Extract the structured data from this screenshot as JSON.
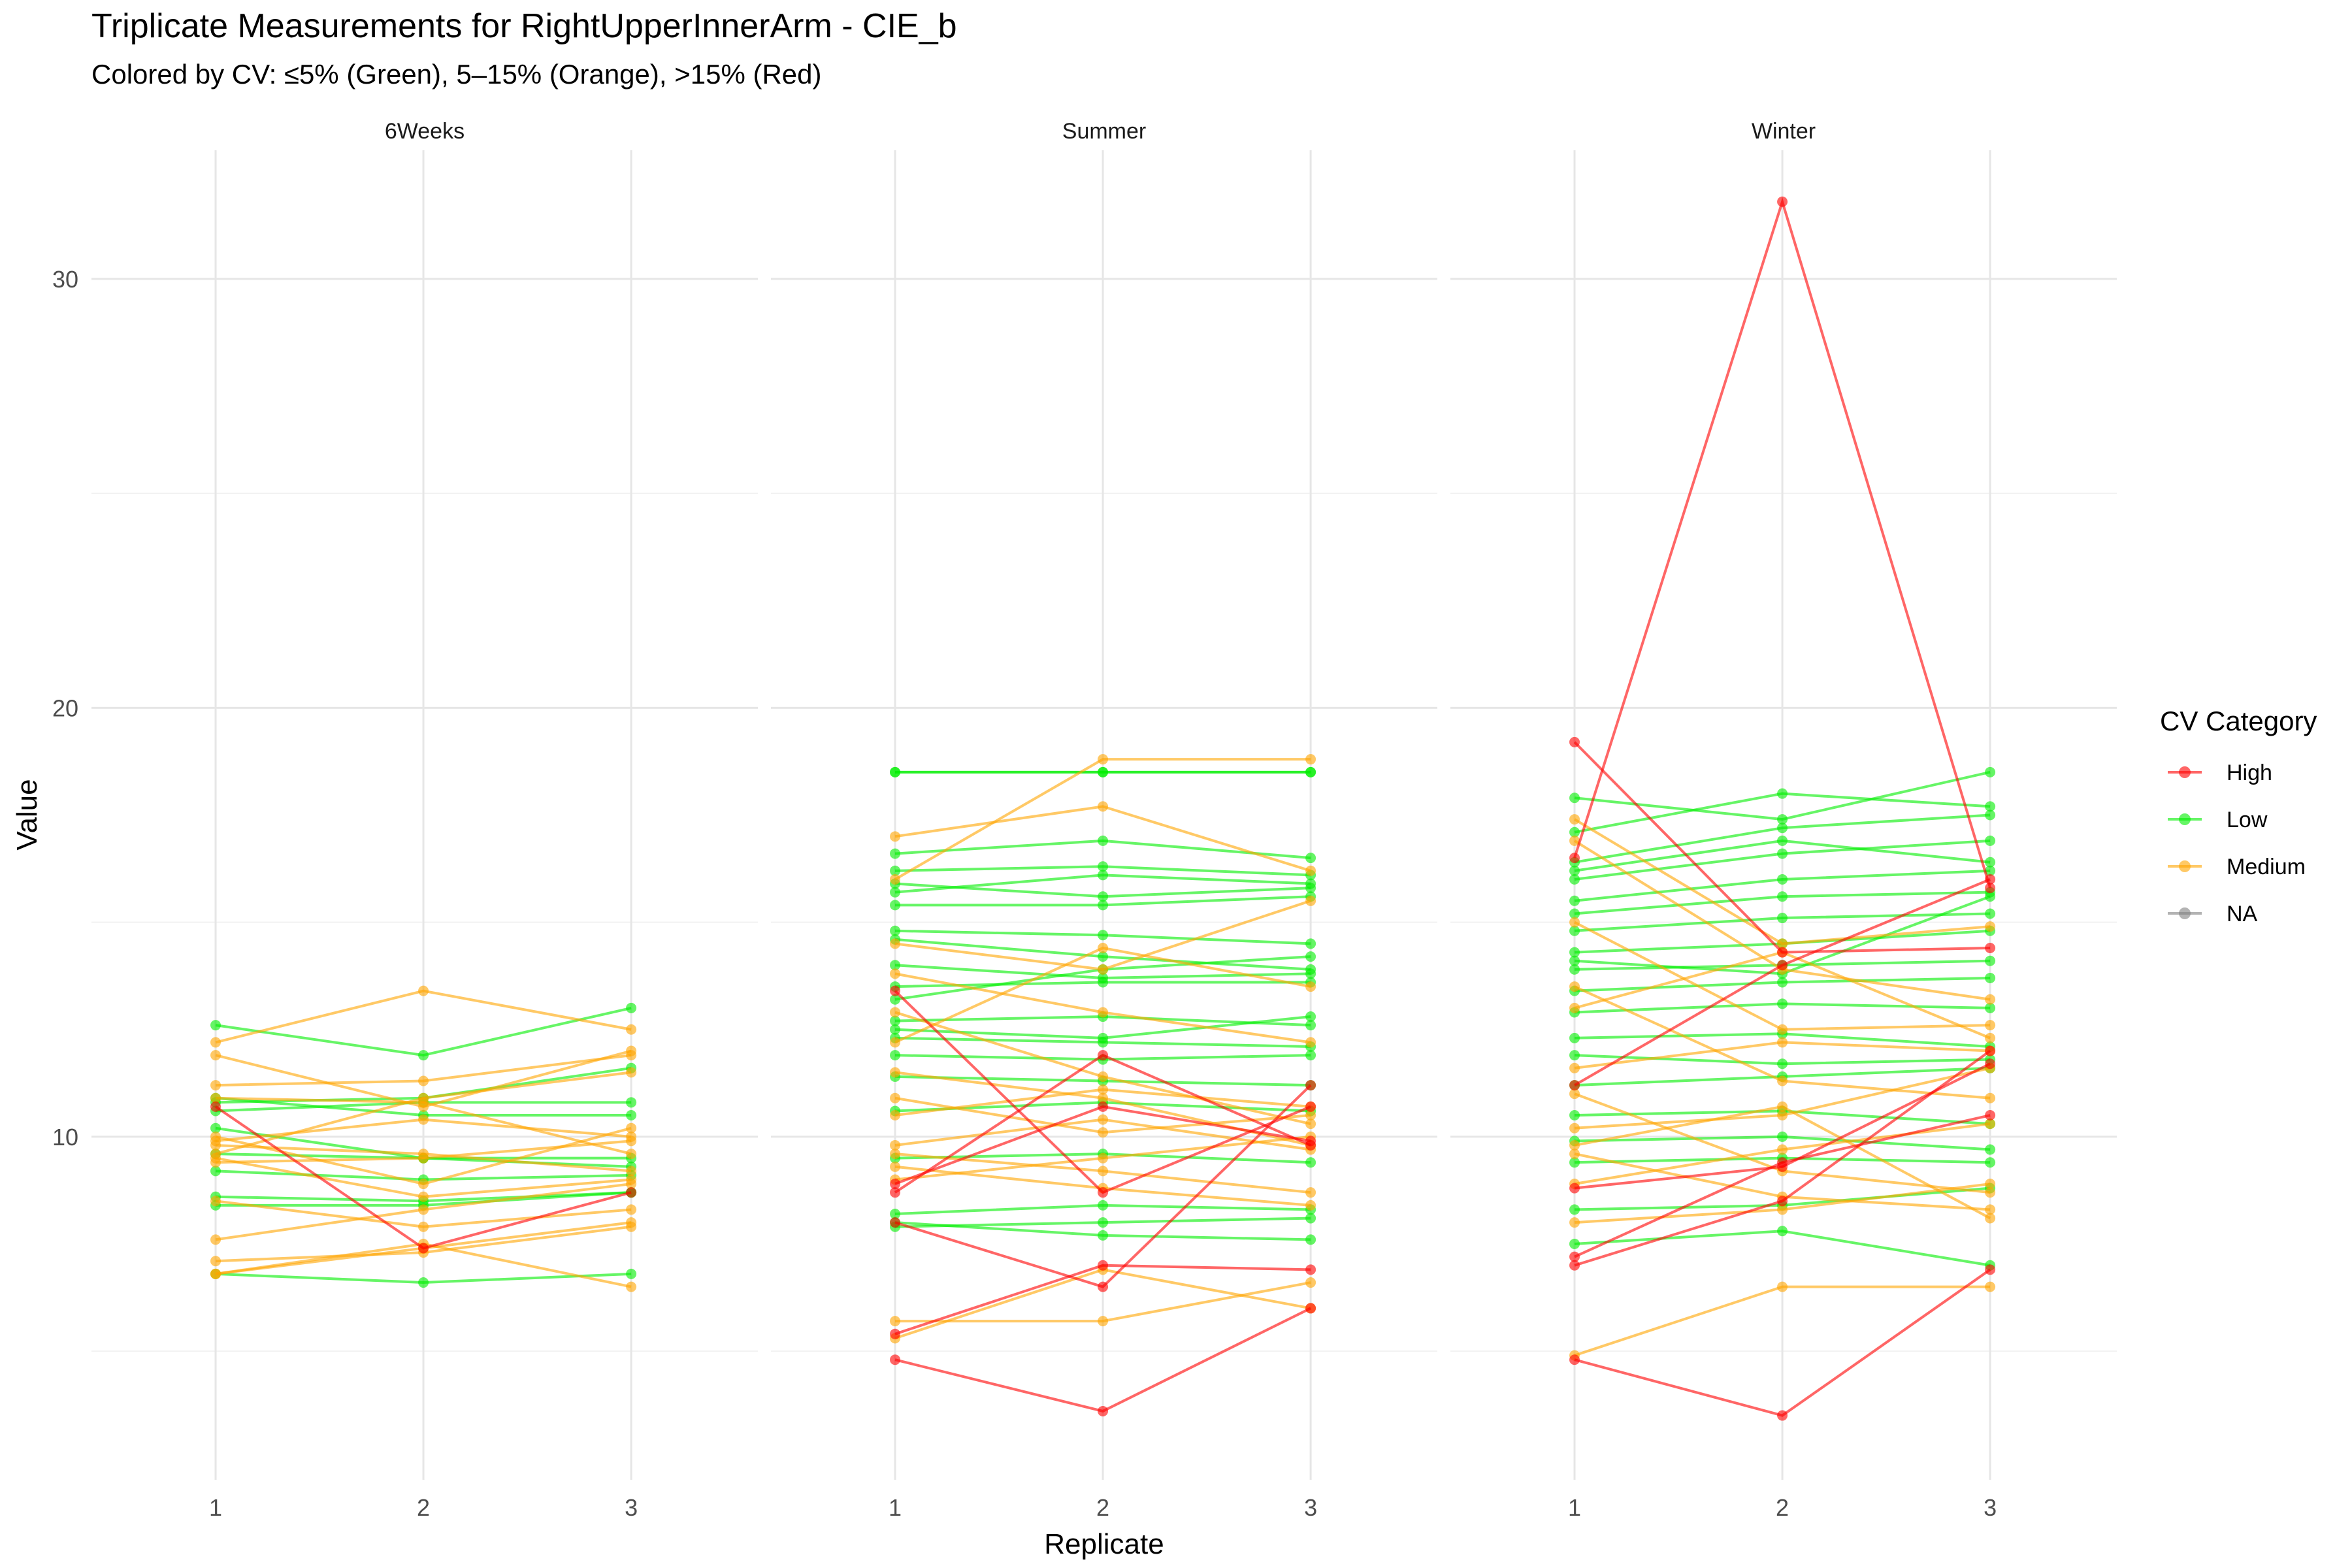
{
  "chart_data": {
    "type": "line",
    "title": "Triplicate Measurements for RightUpperInnerArm - CIE_b",
    "subtitle": "Colored by CV: ≤5% (Green), 5–15% (Orange), >15% (Red)",
    "xlabel": "Replicate",
    "ylabel": "Value",
    "x": [
      1,
      2,
      3
    ],
    "x_ticks": [
      "1",
      "2",
      "3"
    ],
    "y_ticks": [
      10,
      20,
      30
    ],
    "ylim": [
      2.0,
      33.0
    ],
    "grid": true,
    "legend": {
      "title": "CV Category",
      "placement": "right",
      "entries": [
        {
          "name": "High",
          "color": "#FF0000"
        },
        {
          "name": "Low",
          "color": "#00EE00"
        },
        {
          "name": "Medium",
          "color": "#FFA500"
        },
        {
          "name": "NA",
          "color": "#808080"
        }
      ]
    },
    "panels": [
      {
        "name": "6Weeks",
        "series": [
          {
            "category": "Low",
            "values": [
              12.6,
              11.9,
              13.0
            ]
          },
          {
            "category": "Low",
            "values": [
              10.8,
              10.9,
              11.6
            ]
          },
          {
            "category": "Low",
            "values": [
              10.6,
              10.8,
              10.8
            ]
          },
          {
            "category": "Low",
            "values": [
              10.9,
              10.5,
              10.5
            ]
          },
          {
            "category": "Low",
            "values": [
              10.2,
              9.5,
              9.5
            ]
          },
          {
            "category": "Low",
            "values": [
              9.2,
              9.0,
              9.1
            ]
          },
          {
            "category": "Low",
            "values": [
              8.6,
              8.5,
              8.7
            ]
          },
          {
            "category": "Low",
            "values": [
              9.6,
              9.5,
              9.3
            ]
          },
          {
            "category": "Low",
            "values": [
              6.8,
              6.6,
              6.8
            ]
          },
          {
            "category": "Low",
            "values": [
              8.4,
              8.4,
              8.7
            ]
          },
          {
            "category": "Medium",
            "values": [
              12.2,
              13.4,
              12.5
            ]
          },
          {
            "category": "Medium",
            "values": [
              11.9,
              10.7,
              12.0
            ]
          },
          {
            "category": "Medium",
            "values": [
              11.2,
              11.3,
              11.9
            ]
          },
          {
            "category": "Medium",
            "values": [
              9.6,
              10.9,
              11.5
            ]
          },
          {
            "category": "Medium",
            "values": [
              9.4,
              9.5,
              9.9
            ]
          },
          {
            "category": "Medium",
            "values": [
              9.9,
              10.4,
              10.0
            ]
          },
          {
            "category": "Medium",
            "values": [
              9.8,
              9.6,
              9.2
            ]
          },
          {
            "category": "Medium",
            "values": [
              10.9,
              10.8,
              9.6
            ]
          },
          {
            "category": "Medium",
            "values": [
              7.6,
              8.3,
              8.9
            ]
          },
          {
            "category": "Medium",
            "values": [
              8.5,
              7.9,
              8.3
            ]
          },
          {
            "category": "Medium",
            "values": [
              7.1,
              7.3,
              7.9
            ]
          },
          {
            "category": "Medium",
            "values": [
              6.8,
              7.5,
              6.5
            ]
          },
          {
            "category": "Medium",
            "values": [
              10.0,
              8.9,
              10.2
            ]
          },
          {
            "category": "Medium",
            "values": [
              9.5,
              8.6,
              9.0
            ]
          },
          {
            "category": "Medium",
            "values": [
              6.8,
              7.4,
              8.0
            ]
          },
          {
            "category": "High",
            "values": [
              10.7,
              7.4,
              8.7
            ]
          }
        ]
      },
      {
        "name": "Summer",
        "series": [
          {
            "category": "Low",
            "values": [
              18.5,
              18.5,
              18.5
            ]
          },
          {
            "category": "Low",
            "values": [
              18.5,
              18.5,
              18.5
            ]
          },
          {
            "category": "Low",
            "values": [
              16.6,
              16.9,
              16.5
            ]
          },
          {
            "category": "Low",
            "values": [
              16.2,
              16.3,
              16.1
            ]
          },
          {
            "category": "Low",
            "values": [
              15.9,
              15.6,
              15.8
            ]
          },
          {
            "category": "Low",
            "values": [
              15.4,
              15.4,
              15.6
            ]
          },
          {
            "category": "Low",
            "values": [
              14.8,
              14.7,
              14.5
            ]
          },
          {
            "category": "Low",
            "values": [
              14.6,
              14.2,
              13.9
            ]
          },
          {
            "category": "Low",
            "values": [
              14.0,
              13.7,
              13.8
            ]
          },
          {
            "category": "Low",
            "values": [
              13.5,
              13.6,
              13.6
            ]
          },
          {
            "category": "Low",
            "values": [
              12.7,
              12.8,
              12.6
            ]
          },
          {
            "category": "Low",
            "values": [
              12.3,
              12.2,
              12.1
            ]
          },
          {
            "category": "Low",
            "values": [
              11.9,
              11.8,
              11.9
            ]
          },
          {
            "category": "Low",
            "values": [
              11.4,
              11.3,
              11.2
            ]
          },
          {
            "category": "Low",
            "values": [
              10.6,
              10.8,
              10.6
            ]
          },
          {
            "category": "Low",
            "values": [
              8.2,
              8.4,
              8.3
            ]
          },
          {
            "category": "Low",
            "values": [
              8.0,
              7.7,
              7.6
            ]
          },
          {
            "category": "Low",
            "values": [
              7.9,
              8.0,
              8.1
            ]
          },
          {
            "category": "Low",
            "values": [
              15.7,
              16.1,
              15.9
            ]
          },
          {
            "category": "Low",
            "values": [
              13.2,
              13.9,
              14.2
            ]
          },
          {
            "category": "Low",
            "values": [
              12.5,
              12.3,
              12.8
            ]
          },
          {
            "category": "Low",
            "values": [
              9.5,
              9.6,
              9.4
            ]
          },
          {
            "category": "Medium",
            "values": [
              17.0,
              17.7,
              16.2
            ]
          },
          {
            "category": "Medium",
            "values": [
              16.0,
              18.8,
              18.8
            ]
          },
          {
            "category": "Medium",
            "values": [
              14.5,
              13.9,
              15.5
            ]
          },
          {
            "category": "Medium",
            "values": [
              13.8,
              12.9,
              12.2
            ]
          },
          {
            "category": "Medium",
            "values": [
              12.9,
              11.4,
              10.3
            ]
          },
          {
            "category": "Medium",
            "values": [
              11.5,
              10.9,
              9.8
            ]
          },
          {
            "category": "Medium",
            "values": [
              10.9,
              10.1,
              10.5
            ]
          },
          {
            "category": "Medium",
            "values": [
              9.8,
              10.4,
              9.7
            ]
          },
          {
            "category": "Medium",
            "values": [
              9.6,
              9.2,
              8.7
            ]
          },
          {
            "category": "Medium",
            "values": [
              9.3,
              8.8,
              8.4
            ]
          },
          {
            "category": "Medium",
            "values": [
              9.0,
              9.5,
              10.0
            ]
          },
          {
            "category": "Medium",
            "values": [
              5.7,
              5.7,
              6.6
            ]
          },
          {
            "category": "Medium",
            "values": [
              5.3,
              6.9,
              6.0
            ]
          },
          {
            "category": "Medium",
            "values": [
              12.2,
              14.4,
              13.5
            ]
          },
          {
            "category": "Medium",
            "values": [
              10.5,
              11.1,
              10.7
            ]
          },
          {
            "category": "High",
            "values": [
              13.4,
              8.7,
              10.7
            ]
          },
          {
            "category": "High",
            "values": [
              8.7,
              11.9,
              9.8
            ]
          },
          {
            "category": "High",
            "values": [
              8.9,
              10.7,
              9.9
            ]
          },
          {
            "category": "High",
            "values": [
              8.0,
              6.5,
              11.2
            ]
          },
          {
            "category": "High",
            "values": [
              5.4,
              7.0,
              6.9
            ]
          },
          {
            "category": "High",
            "values": [
              4.8,
              3.6,
              6.0
            ]
          }
        ]
      },
      {
        "name": "Winter",
        "series": [
          {
            "category": "Low",
            "values": [
              17.9,
              17.4,
              18.5
            ]
          },
          {
            "category": "Low",
            "values": [
              17.1,
              18.0,
              17.7
            ]
          },
          {
            "category": "Low",
            "values": [
              16.4,
              17.2,
              17.5
            ]
          },
          {
            "category": "Low",
            "values": [
              16.0,
              16.6,
              16.9
            ]
          },
          {
            "category": "Low",
            "values": [
              15.5,
              16.0,
              16.2
            ]
          },
          {
            "category": "Low",
            "values": [
              15.2,
              15.6,
              15.7
            ]
          },
          {
            "category": "Low",
            "values": [
              14.8,
              15.1,
              15.2
            ]
          },
          {
            "category": "Low",
            "values": [
              14.3,
              14.5,
              14.8
            ]
          },
          {
            "category": "Low",
            "values": [
              13.9,
              14.0,
              14.1
            ]
          },
          {
            "category": "Low",
            "values": [
              13.4,
              13.6,
              13.7
            ]
          },
          {
            "category": "Low",
            "values": [
              12.9,
              13.1,
              13.0
            ]
          },
          {
            "category": "Low",
            "values": [
              12.3,
              12.4,
              12.1
            ]
          },
          {
            "category": "Low",
            "values": [
              11.9,
              11.7,
              11.8
            ]
          },
          {
            "category": "Low",
            "values": [
              10.5,
              10.6,
              10.3
            ]
          },
          {
            "category": "Low",
            "values": [
              9.9,
              10.0,
              9.7
            ]
          },
          {
            "category": "Low",
            "values": [
              9.4,
              9.5,
              9.4
            ]
          },
          {
            "category": "Low",
            "values": [
              8.3,
              8.4,
              8.8
            ]
          },
          {
            "category": "Low",
            "values": [
              7.5,
              7.8,
              7.0
            ]
          },
          {
            "category": "Low",
            "values": [
              16.2,
              16.9,
              16.4
            ]
          },
          {
            "category": "Low",
            "values": [
              14.1,
              13.8,
              15.6
            ]
          },
          {
            "category": "Low",
            "values": [
              11.2,
              11.4,
              11.6
            ]
          },
          {
            "category": "Medium",
            "values": [
              17.4,
              14.5,
              14.9
            ]
          },
          {
            "category": "Medium",
            "values": [
              16.9,
              13.9,
              13.2
            ]
          },
          {
            "category": "Medium",
            "values": [
              15.0,
              12.5,
              12.6
            ]
          },
          {
            "category": "Medium",
            "values": [
              13.5,
              11.3,
              10.9
            ]
          },
          {
            "category": "Medium",
            "values": [
              11.6,
              12.2,
              12.0
            ]
          },
          {
            "category": "Medium",
            "values": [
              11.0,
              9.2,
              8.7
            ]
          },
          {
            "category": "Medium",
            "values": [
              10.2,
              10.5,
              11.6
            ]
          },
          {
            "category": "Medium",
            "values": [
              9.6,
              8.6,
              8.3
            ]
          },
          {
            "category": "Medium",
            "values": [
              8.9,
              9.7,
              10.3
            ]
          },
          {
            "category": "Medium",
            "values": [
              8.0,
              8.3,
              8.9
            ]
          },
          {
            "category": "Medium",
            "values": [
              4.9,
              6.5,
              6.5
            ]
          },
          {
            "category": "Medium",
            "values": [
              13.0,
              14.3,
              12.3
            ]
          },
          {
            "category": "Medium",
            "values": [
              9.8,
              10.7,
              8.1
            ]
          },
          {
            "category": "High",
            "values": [
              16.5,
              31.8,
              15.8
            ]
          },
          {
            "category": "High",
            "values": [
              19.2,
              14.3,
              14.4
            ]
          },
          {
            "category": "High",
            "values": [
              11.2,
              14.0,
              16.0
            ]
          },
          {
            "category": "High",
            "values": [
              8.8,
              9.3,
              11.7
            ]
          },
          {
            "category": "High",
            "values": [
              7.2,
              9.4,
              10.5
            ]
          },
          {
            "category": "High",
            "values": [
              7.0,
              8.5,
              12.0
            ]
          },
          {
            "category": "High",
            "values": [
              4.8,
              3.5,
              6.9
            ]
          }
        ]
      }
    ]
  }
}
